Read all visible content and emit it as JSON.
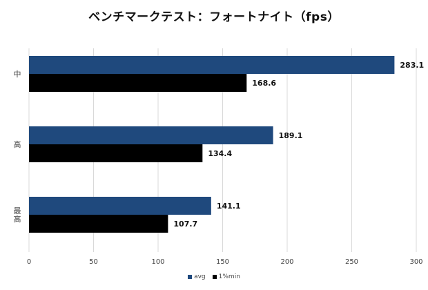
{
  "colors": {
    "avg": "#1f497d",
    "min1": "#000000",
    "grid": "#d9d9d9",
    "axis_text": "#404040"
  },
  "chart_data": {
    "type": "bar",
    "orientation": "horizontal",
    "title": "ベンチマークテスト：フォートナイト（fps）",
    "categories": [
      "中",
      "高",
      "最高"
    ],
    "series": [
      {
        "name": "avg",
        "values": [
          283.1,
          189.1,
          141.1
        ]
      },
      {
        "name": "1%min",
        "values": [
          168.6,
          134.4,
          107.7
        ]
      }
    ],
    "xlim": [
      0,
      300
    ],
    "xticks": [
      0,
      50,
      100,
      150,
      200,
      250,
      300
    ],
    "grid": true,
    "legend": "bottom",
    "data_labels": true
  }
}
